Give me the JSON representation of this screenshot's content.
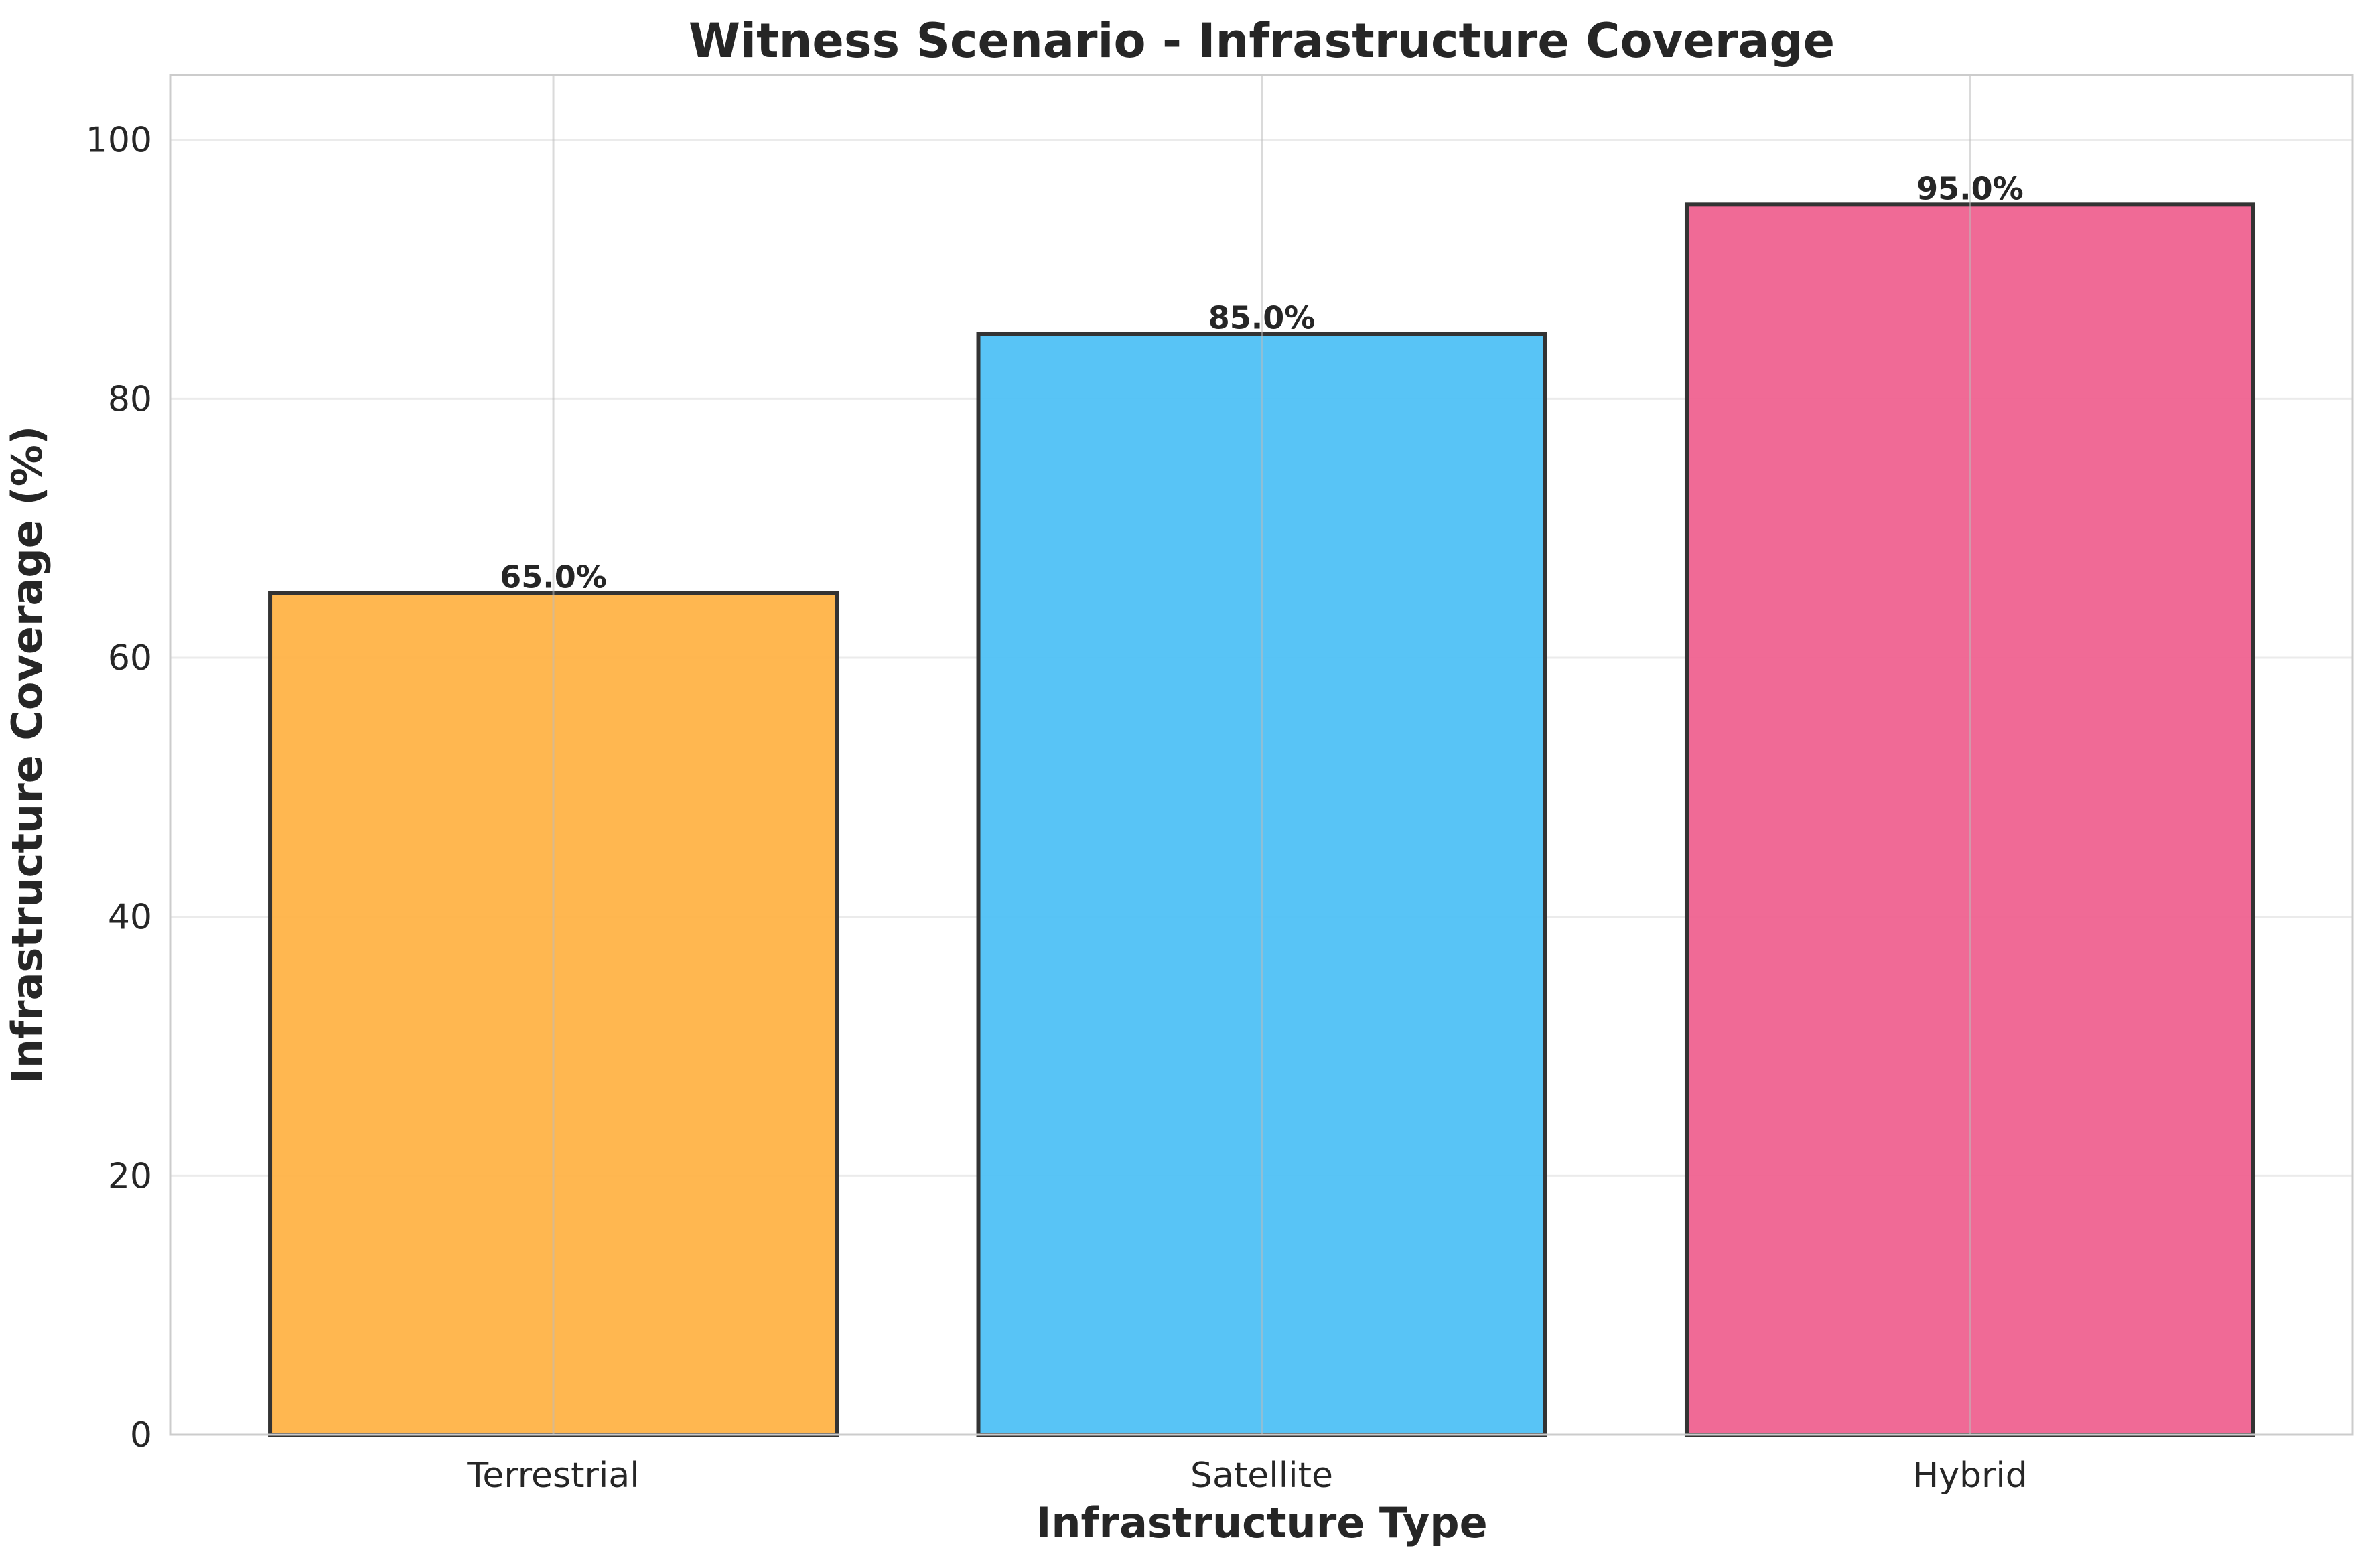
{
  "chart_data": {
    "type": "bar",
    "title": "Witness Scenario - Infrastructure Coverage",
    "xlabel": "Infrastructure Type",
    "ylabel": "Infrastructure Coverage (%)",
    "categories": [
      "Terrestrial",
      "Satellite",
      "Hybrid"
    ],
    "values": [
      65.0,
      85.0,
      95.0
    ],
    "value_labels": [
      "65.0%",
      "85.0%",
      "95.0%"
    ],
    "colors": [
      "#FFB347",
      "#4FC1F5",
      "#EF6290"
    ],
    "edge_color": "#333333",
    "ylim": [
      0,
      105
    ],
    "yticks": [
      0,
      20,
      40,
      60,
      80,
      100
    ],
    "ytick_labels": [
      "0",
      "20",
      "40",
      "60",
      "80",
      "100"
    ],
    "grid": true,
    "legend": false
  }
}
